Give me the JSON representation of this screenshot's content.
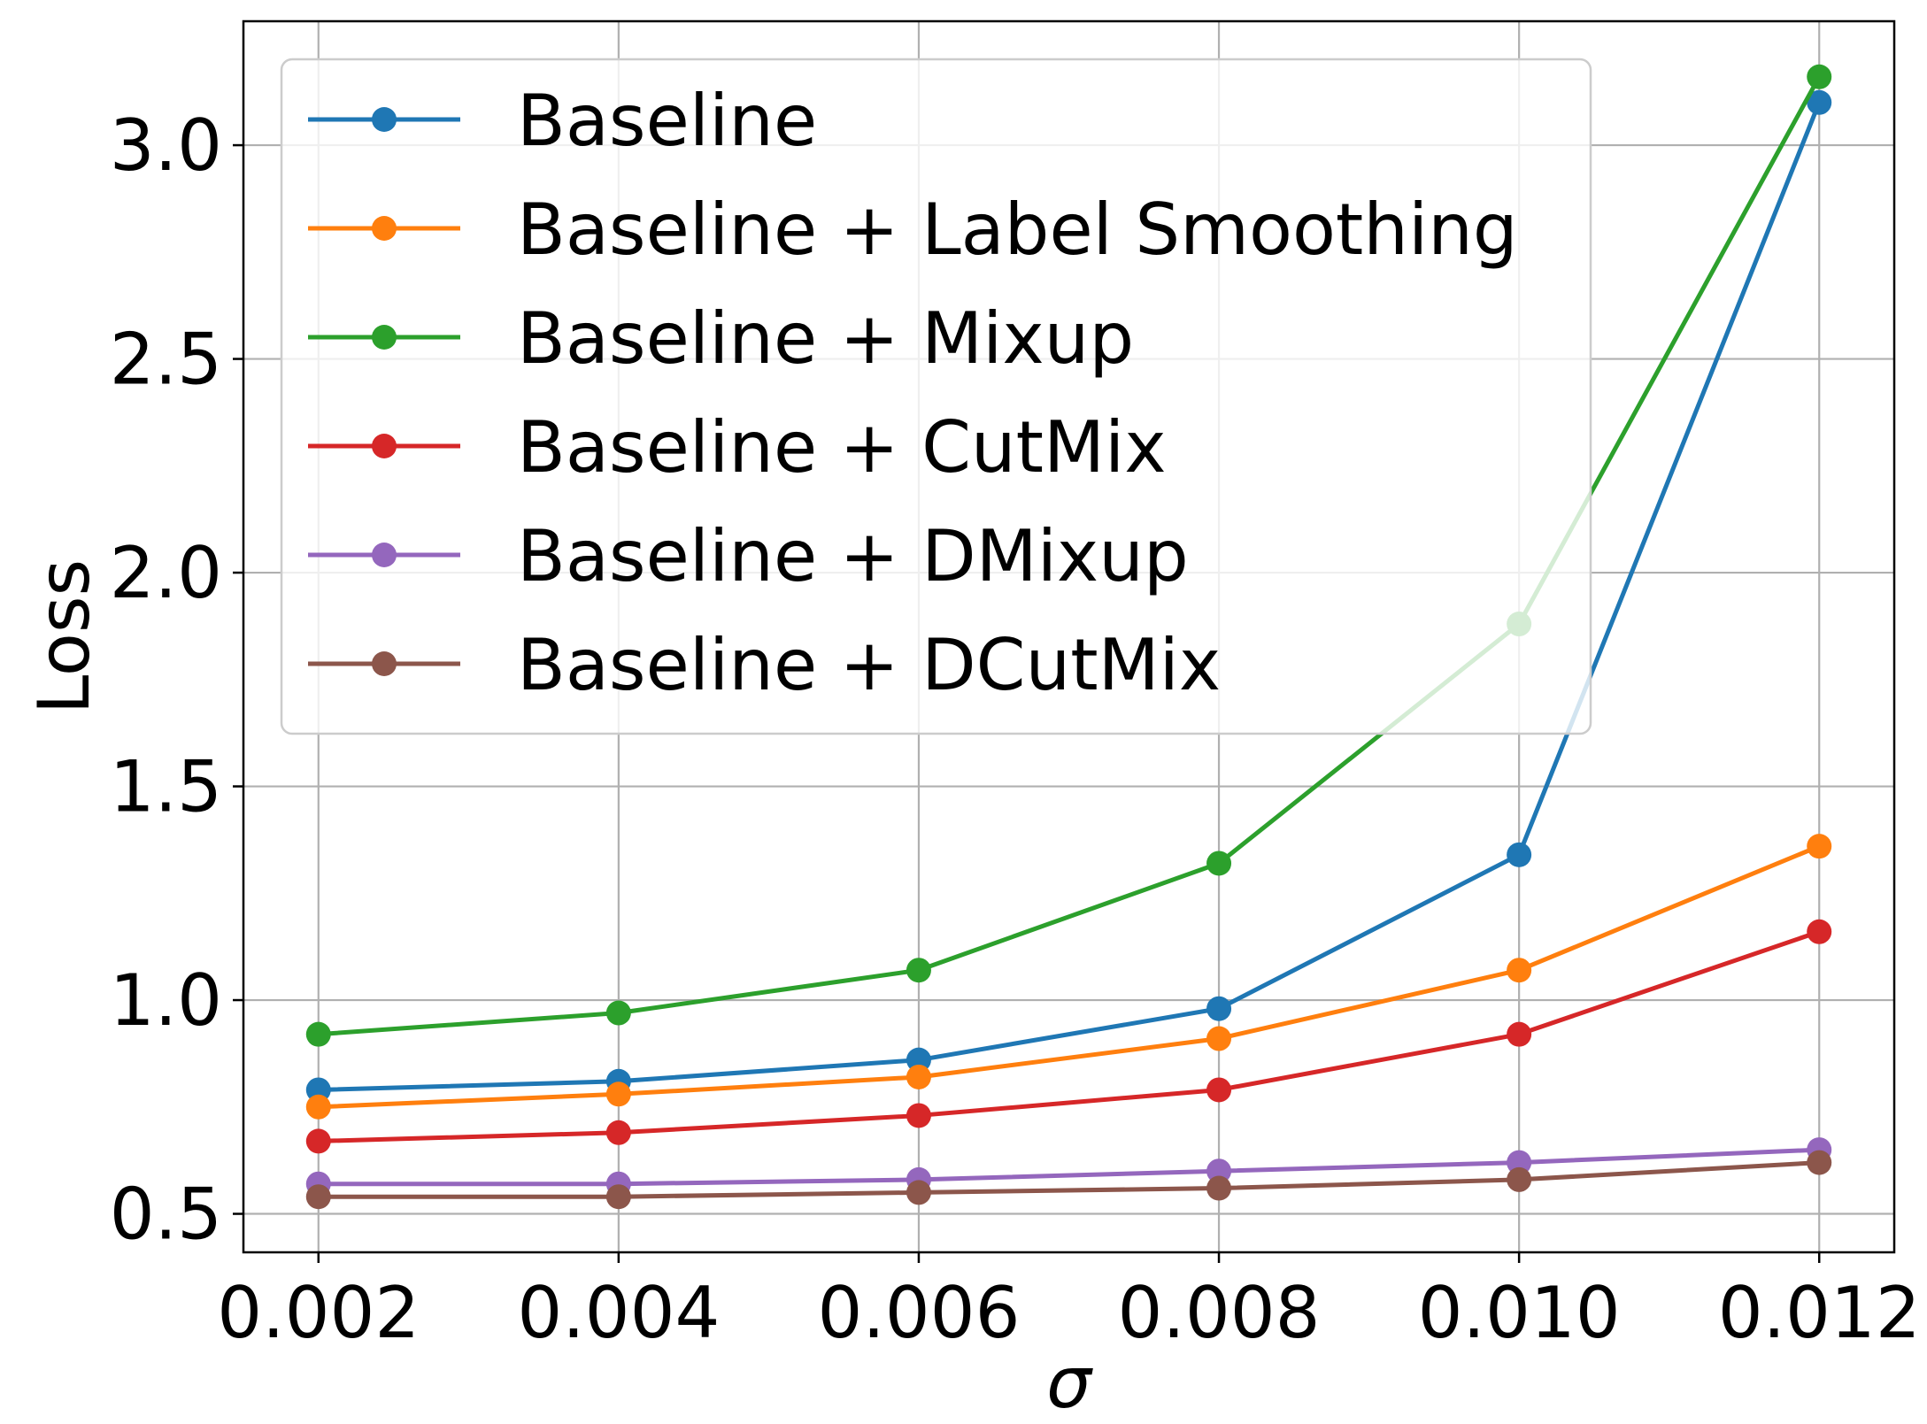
{
  "chart_data": {
    "type": "line",
    "title": "",
    "xlabel": "σ",
    "ylabel": "Loss",
    "x": [
      0.002,
      0.004,
      0.006,
      0.008,
      0.01,
      0.012
    ],
    "xticks": [
      "0.002",
      "0.004",
      "0.006",
      "0.008",
      "0.010",
      "0.012"
    ],
    "yticks": [
      "0.5",
      "1.0",
      "1.5",
      "2.0",
      "2.5",
      "3.0"
    ],
    "xlim": [
      0.0015,
      0.0125
    ],
    "ylim": [
      0.41,
      3.29
    ],
    "grid": true,
    "legend_position": "upper-left",
    "series": [
      {
        "name": "Baseline",
        "color": "#1f77b4",
        "values": [
          0.79,
          0.81,
          0.86,
          0.98,
          1.34,
          3.1
        ]
      },
      {
        "name": "Baseline + Label Smoothing",
        "color": "#ff7f0e",
        "values": [
          0.75,
          0.78,
          0.82,
          0.91,
          1.07,
          1.36
        ]
      },
      {
        "name": "Baseline + Mixup",
        "color": "#2ca02c",
        "values": [
          0.92,
          0.97,
          1.07,
          1.32,
          1.88,
          3.16
        ]
      },
      {
        "name": "Baseline + CutMix",
        "color": "#d62728",
        "values": [
          0.67,
          0.69,
          0.73,
          0.79,
          0.92,
          1.16
        ]
      },
      {
        "name": "Baseline + DMixup",
        "color": "#9467bd",
        "values": [
          0.57,
          0.57,
          0.58,
          0.6,
          0.62,
          0.65
        ]
      },
      {
        "name": "Baseline + DCutMix",
        "color": "#8c564b",
        "values": [
          0.54,
          0.54,
          0.55,
          0.56,
          0.58,
          0.62
        ]
      }
    ]
  }
}
